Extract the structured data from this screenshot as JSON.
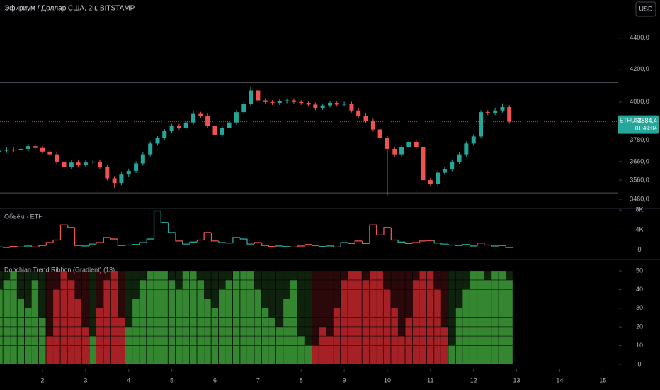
{
  "header": {
    "title": "Эфириум / Доллар США, 2ч, BITSTAMP",
    "currency": "USD"
  },
  "chart_data": [
    {
      "type": "candlestick",
      "log": true,
      "up_color": "#26a69a",
      "down_color": "#ef5350",
      "ylim": [
        3413,
        4657
      ],
      "yticks": [
        {
          "value": 3460,
          "label": "3460,0"
        },
        {
          "value": 3560,
          "label": "3560,0"
        },
        {
          "value": 3660,
          "label": "3660,0"
        },
        {
          "value": 3780,
          "label": "3780,0"
        },
        {
          "value": 4000,
          "label": "4000,0"
        },
        {
          "value": 4200,
          "label": "4200,0"
        },
        {
          "value": 4400,
          "label": "4400,0"
        }
      ],
      "xlim": [
        1.014,
        15.34
      ],
      "levels": [
        4118,
        3493
      ],
      "last_price": {
        "symbol": "ETHUSD",
        "value": 3884.4,
        "label": "3884,4",
        "countdown": "01:49:04"
      },
      "x": [
        1,
        1.17,
        1.33,
        1.5,
        1.67,
        1.83,
        2,
        2.17,
        2.33,
        2.5,
        2.67,
        2.83,
        3,
        3.17,
        3.33,
        3.5,
        3.67,
        3.83,
        4,
        4.17,
        4.33,
        4.5,
        4.67,
        4.83,
        5,
        5.17,
        5.33,
        5.5,
        5.67,
        5.83,
        6,
        6.17,
        6.33,
        6.5,
        6.67,
        6.83,
        7,
        7.17,
        7.33,
        7.5,
        7.67,
        7.83,
        8,
        8.17,
        8.33,
        8.5,
        8.67,
        8.83,
        9,
        9.17,
        9.33,
        9.5,
        9.67,
        9.83,
        10,
        10.17,
        10.33,
        10.5,
        10.67,
        10.83,
        11,
        11.17,
        11.33,
        11.5,
        11.67,
        11.83,
        12,
        12.17,
        12.33,
        12.5,
        12.67,
        12.83
      ],
      "opens": [
        3715,
        3720,
        3725,
        3722,
        3730,
        3745,
        3735,
        3715,
        3700,
        3660,
        3630,
        3655,
        3640,
        3655,
        3660,
        3630,
        3570,
        3545,
        3590,
        3610,
        3650,
        3700,
        3760,
        3790,
        3830,
        3860,
        3850,
        3880,
        3930,
        3920,
        3860,
        3810,
        3850,
        3880,
        3940,
        3990,
        4070,
        4010,
        4000,
        3995,
        4005,
        4010,
        4000,
        3995,
        3985,
        3965,
        3980,
        3995,
        3985,
        3990,
        3950,
        3920,
        3890,
        3840,
        3790,
        3730,
        3700,
        3740,
        3770,
        3740,
        3560,
        3540,
        3600,
        3620,
        3660,
        3700,
        3760,
        3800,
        3940,
        3935,
        3950,
        3970
      ],
      "highs": [
        3732,
        3737,
        3737,
        3742,
        3757,
        3757,
        3747,
        3727,
        3712,
        3672,
        3667,
        3667,
        3667,
        3672,
        3672,
        3642,
        3582,
        3602,
        3622,
        3662,
        3712,
        3772,
        3802,
        3842,
        3872,
        3872,
        3892,
        3950,
        3942,
        3932,
        3872,
        3862,
        3892,
        3952,
        4002,
        4095,
        4082,
        4022,
        4012,
        4017,
        4022,
        4022,
        4012,
        4007,
        3997,
        3992,
        4007,
        4007,
        4002,
        4002,
        3962,
        3932,
        3902,
        3852,
        3802,
        3742,
        3752,
        3782,
        3782,
        3752,
        3572,
        3612,
        3632,
        3672,
        3712,
        3772,
        3812,
        3952,
        3952,
        3962,
        3992,
        3982
      ],
      "lows": [
        3703,
        3708,
        3710,
        3710,
        3718,
        3723,
        3703,
        3688,
        3648,
        3618,
        3618,
        3628,
        3628,
        3643,
        3618,
        3558,
        3520,
        3533,
        3578,
        3598,
        3638,
        3688,
        3748,
        3778,
        3818,
        3838,
        3838,
        3868,
        3908,
        3848,
        3720,
        3798,
        3838,
        3868,
        3928,
        3978,
        3998,
        3988,
        3983,
        3983,
        3993,
        3988,
        3983,
        3973,
        3953,
        3953,
        3968,
        3973,
        3973,
        3938,
        3908,
        3878,
        3828,
        3778,
        3480,
        3688,
        3688,
        3728,
        3728,
        3548,
        3528,
        3528,
        3588,
        3608,
        3648,
        3688,
        3748,
        3788,
        3923,
        3923,
        3938,
        3872.4
      ],
      "closes": [
        3720,
        3725,
        3722,
        3730,
        3745,
        3735,
        3715,
        3700,
        3660,
        3630,
        3655,
        3640,
        3655,
        3660,
        3630,
        3570,
        3545,
        3590,
        3610,
        3650,
        3700,
        3760,
        3790,
        3830,
        3860,
        3850,
        3880,
        3930,
        3920,
        3860,
        3810,
        3850,
        3880,
        3940,
        3990,
        4070,
        4010,
        4000,
        3995,
        4005,
        4010,
        4000,
        3995,
        3985,
        3965,
        3980,
        3995,
        3985,
        3990,
        3950,
        3920,
        3890,
        3840,
        3790,
        3730,
        3700,
        3740,
        3770,
        3740,
        3560,
        3540,
        3600,
        3620,
        3660,
        3700,
        3760,
        3800,
        3940,
        3935,
        3950,
        3970,
        3884.4
      ]
    },
    {
      "type": "volume",
      "title": "Объём · ETH",
      "up_color": "#26a69a",
      "down_color": "#ef5350",
      "ylim": [
        -1900,
        8300
      ],
      "xlim": [
        1.014,
        15.34
      ],
      "yticks": [
        0,
        {
          "value": 4000,
          "label": "4K"
        },
        {
          "value": 8000,
          "label": "8K"
        }
      ],
      "values": [
        600,
        500,
        700,
        600,
        800,
        600,
        900,
        1500,
        2000,
        5000,
        4500,
        900,
        800,
        1200,
        1500,
        2500,
        2200,
        900,
        1000,
        1100,
        1500,
        2200,
        7800,
        5500,
        3500,
        1800,
        1200,
        1600,
        2000,
        3500,
        1800,
        1500,
        1400,
        2500,
        2200,
        1200,
        1500,
        900,
        700,
        800,
        700,
        600,
        800,
        1100,
        900,
        700,
        800,
        600,
        1500,
        1300,
        1800,
        1300,
        5000,
        3000,
        4500,
        2000,
        1600,
        1300,
        1500,
        1800,
        1900,
        1400,
        1200,
        1000,
        900,
        1100,
        800,
        1400,
        1000,
        800,
        900,
        500
      ]
    },
    {
      "type": "ribbon",
      "title": "Donchian Trend Ribbon (Gradient) (13)",
      "up_color": "#3e9d3a",
      "down_color": "#c2272d",
      "ylim": [
        -2.3,
        56.1
      ],
      "yticks": [
        0,
        10,
        20,
        30,
        40,
        50
      ],
      "xlim": [
        1.014,
        15.34
      ],
      "xticks": [
        2,
        3,
        4,
        5,
        6,
        7,
        8,
        9,
        10,
        11,
        12,
        13,
        14,
        15
      ],
      "trend": [
        8,
        9,
        10,
        7,
        6,
        9,
        5,
        -3,
        -8,
        -10,
        -9,
        -7,
        -4,
        3,
        -6,
        -9,
        -10,
        -5,
        4,
        7,
        9,
        10,
        10,
        10,
        9,
        8,
        10,
        10,
        9,
        7,
        6,
        8,
        9,
        10,
        10,
        10,
        8,
        6,
        5,
        4,
        7,
        9,
        3,
        2,
        -2,
        -4,
        -3,
        -6,
        -9,
        -10,
        -10,
        -9,
        -10,
        -10,
        -8,
        -6,
        -3,
        -5,
        -9,
        -10,
        -10,
        -8,
        -4,
        2,
        6,
        8,
        10,
        10,
        9,
        10,
        10,
        9
      ]
    }
  ]
}
